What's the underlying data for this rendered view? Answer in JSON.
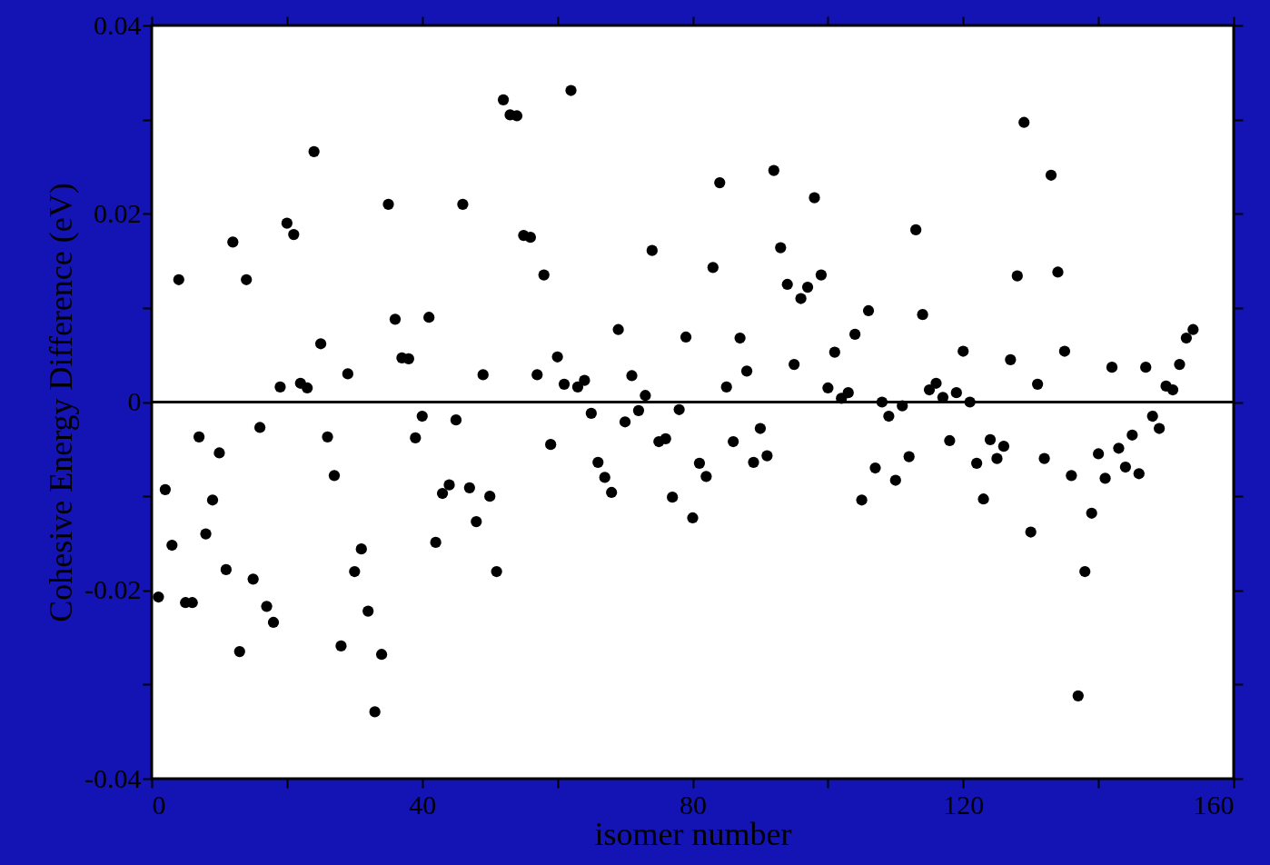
{
  "chart_data": {
    "type": "scatter",
    "xlabel": "isomer number",
    "ylabel": "Cohesive Energy Difference (eV)",
    "x": [
      1,
      2,
      3,
      4,
      5,
      6,
      7,
      8,
      9,
      10,
      11,
      12,
      13,
      14,
      15,
      16,
      17,
      18,
      19,
      20,
      21,
      22,
      23,
      24,
      25,
      26,
      27,
      28,
      29,
      30,
      31,
      32,
      33,
      34,
      35,
      36,
      37,
      38,
      39,
      40,
      41,
      42,
      43,
      44,
      45,
      46,
      47,
      48,
      49,
      50,
      51,
      52,
      53,
      54,
      55,
      56,
      57,
      58,
      59,
      60,
      61,
      62,
      63,
      64,
      65,
      66,
      67,
      68,
      69,
      70,
      71,
      72,
      73,
      74,
      75,
      76,
      77,
      78,
      79,
      80,
      81,
      82,
      83,
      84,
      85,
      86,
      87,
      88,
      89,
      90,
      91,
      92,
      93,
      94,
      95,
      96,
      97,
      98,
      99,
      100,
      101,
      102,
      103,
      104,
      105,
      106,
      107,
      108,
      109,
      110,
      111,
      112,
      113,
      114,
      115,
      116,
      117,
      118,
      119,
      120,
      121,
      122,
      123,
      124,
      125,
      126,
      127,
      128,
      129,
      130,
      131,
      132,
      133,
      134,
      135,
      136,
      137,
      138,
      139,
      140,
      141,
      142,
      143,
      144,
      145,
      146,
      147,
      148,
      149,
      150,
      151,
      152,
      153,
      154
    ],
    "series": [
      {
        "color": "#000000",
        "values": [
          -0.0207,
          -0.0093,
          -0.0152,
          0.013,
          -0.0213,
          -0.0213,
          -0.0037,
          -0.014,
          -0.0104,
          -0.0054,
          -0.0178,
          0.017,
          -0.0265,
          0.013,
          -0.0188,
          -0.0027,
          -0.0217,
          -0.0234,
          0.0016,
          0.019,
          0.0178,
          0.002,
          0.0015,
          0.0266,
          0.0062,
          -0.0037,
          -0.0078,
          -0.0259,
          0.003,
          -0.018,
          -0.0156,
          -0.0222,
          -0.0329,
          -0.0268,
          0.021,
          0.0088,
          0.0047,
          0.0046,
          -0.0038,
          -0.0015,
          0.009,
          -0.0149,
          -0.0097,
          -0.0088,
          -0.0019,
          0.021,
          -0.0091,
          -0.0127,
          0.0029,
          -0.01,
          -0.018,
          0.0321,
          0.0305,
          0.0304,
          0.0177,
          0.0175,
          0.0029,
          0.0135,
          -0.0045,
          0.0048,
          0.0019,
          0.0331,
          0.0016,
          0.0023,
          -0.0012,
          -0.0064,
          -0.008,
          -0.0096,
          0.0077,
          -0.0021,
          0.0028,
          -0.0009,
          0.0007,
          0.0161,
          -0.0042,
          -0.0039,
          -0.0101,
          -0.0008,
          0.0069,
          -0.0123,
          -0.0065,
          -0.0079,
          0.0143,
          0.0233,
          0.0016,
          -0.0042,
          0.0068,
          0.0033,
          -0.0064,
          -0.0028,
          -0.0057,
          0.0246,
          0.0164,
          0.0125,
          0.004,
          0.011,
          0.0122,
          0.0217,
          0.0135,
          0.0015,
          0.0053,
          0.0004,
          0.001,
          0.0072,
          -0.0104,
          0.0097,
          -0.007,
          0.0,
          -0.0015,
          -0.0083,
          -0.0004,
          -0.0058,
          0.0183,
          0.0093,
          0.0013,
          0.002,
          0.0005,
          -0.0041,
          0.001,
          0.0054,
          0.0,
          -0.0065,
          -0.0103,
          -0.004,
          -0.006,
          -0.0047,
          0.0045,
          0.0134,
          0.0297,
          -0.0138,
          0.0019,
          -0.006,
          0.0241,
          0.0138,
          0.0054,
          -0.0078,
          -0.0312,
          -0.018,
          -0.0118,
          -0.0055,
          -0.0081,
          0.0037,
          -0.0049,
          -0.0069,
          -0.0035,
          -0.0076,
          0.0037,
          -0.0015,
          -0.0028,
          0.0017,
          0.0013,
          0.004,
          0.0068,
          0.0077
        ]
      }
    ],
    "xlim": [
      0,
      160
    ],
    "xticks": [
      0,
      {
        "value": 20,
        "label": null
      },
      40,
      {
        "value": 60,
        "label": null
      },
      80,
      {
        "value": 100,
        "label": null
      },
      120,
      {
        "value": 140,
        "label": null
      },
      160
    ],
    "ylim": [
      -0.04,
      0.04
    ],
    "yticks": [
      -0.04,
      {
        "value": -0.03,
        "label": null
      },
      -0.02,
      {
        "value": -0.01,
        "label": null
      },
      0,
      {
        "value": 0.01,
        "label": null
      },
      0.02,
      {
        "value": 0.03,
        "label": null
      },
      0.04
    ],
    "ref_lines": [
      {
        "axis": "y",
        "value": 0,
        "color": "#000000"
      }
    ],
    "grid": false,
    "marker": "circle"
  }
}
